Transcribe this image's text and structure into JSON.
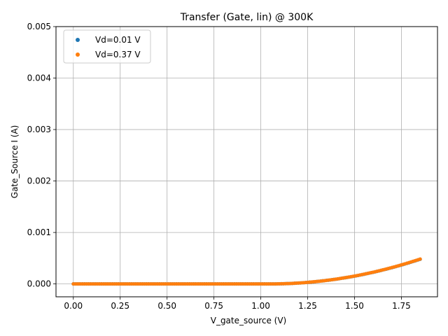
{
  "chart_data": {
    "type": "scatter",
    "title": "Transfer (Gate, lin) @ 300K",
    "xlabel": "V_gate_source (V)",
    "ylabel": "Gate_Source I (A)",
    "xlim": [
      -0.0925,
      1.9425
    ],
    "ylim": [
      -0.00025,
      0.005
    ],
    "xticks": [
      0.0,
      0.25,
      0.5,
      0.75,
      1.0,
      1.25,
      1.5,
      1.75
    ],
    "xtick_labels": [
      "0.00",
      "0.25",
      "0.50",
      "0.75",
      "1.00",
      "1.25",
      "1.50",
      "1.75"
    ],
    "yticks": [
      0.0,
      0.001,
      0.002,
      0.003,
      0.004,
      0.005
    ],
    "ytick_labels": [
      "0.000",
      "0.001",
      "0.002",
      "0.003",
      "0.004",
      "0.005"
    ],
    "grid": true,
    "legend_position": "upper-left",
    "sampling": {
      "x_start": 0.0,
      "x_end": 1.85,
      "points": 186
    },
    "series": [
      {
        "name": "Vd=0.01 V",
        "color": "#1f77b4",
        "model": {
          "threshold_v": 1.05,
          "scale_a_per_v2": 0.00075,
          "shape": "quadratic-above-threshold"
        }
      },
      {
        "name": "Vd=0.37 V",
        "color": "#ff7f0e",
        "model": {
          "threshold_v": 1.05,
          "scale_a_per_v2": 0.000755,
          "shape": "quadratic-above-threshold"
        }
      }
    ]
  }
}
